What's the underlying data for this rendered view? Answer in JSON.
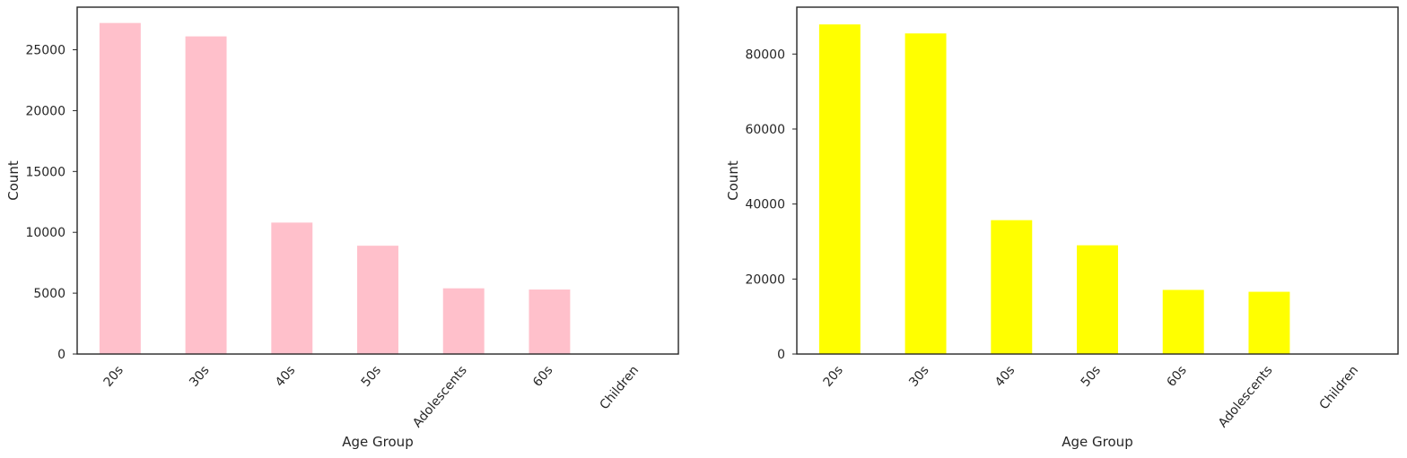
{
  "chart_data": [
    {
      "type": "bar",
      "categories": [
        "20s",
        "30s",
        "40s",
        "50s",
        "Adolescents",
        "60s",
        "Children"
      ],
      "values": [
        27200,
        26100,
        10800,
        8900,
        5400,
        5300,
        0
      ],
      "xlabel": "Age Group",
      "ylabel": "Count",
      "ylim": [
        0,
        28500
      ],
      "yticks": [
        0,
        5000,
        10000,
        15000,
        20000,
        25000
      ],
      "grid": false,
      "bar_color": "#FFC0CB",
      "legend": "none"
    },
    {
      "type": "bar",
      "categories": [
        "20s",
        "30s",
        "40s",
        "50s",
        "60s",
        "Adolescents",
        "Children"
      ],
      "values": [
        87900,
        85500,
        35700,
        29000,
        17100,
        16600,
        0
      ],
      "xlabel": "Age Group",
      "ylabel": "Count",
      "ylim": [
        0,
        92500
      ],
      "yticks": [
        0,
        20000,
        40000,
        60000,
        80000
      ],
      "grid": false,
      "bar_color": "#FFFF00",
      "legend": "none"
    }
  ]
}
